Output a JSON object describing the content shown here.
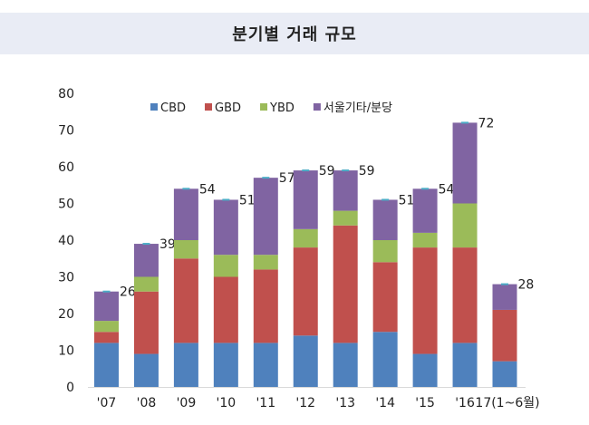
{
  "title": "분기별 거래 규모",
  "chart_data": {
    "type": "bar",
    "stacked": true,
    "title": "분기별 거래 규모",
    "categories": [
      "'07",
      "'08",
      "'09",
      "'10",
      "'11",
      "'12",
      "'13",
      "'14",
      "'15",
      "'16",
      "17(1~6월)"
    ],
    "series": [
      {
        "name": "CBD",
        "color": "#4f81bd",
        "values": [
          12,
          9,
          12,
          12,
          12,
          14,
          12,
          15,
          9,
          12,
          7
        ]
      },
      {
        "name": "GBD",
        "color": "#c0504d",
        "values": [
          3,
          17,
          23,
          18,
          20,
          24,
          32,
          19,
          29,
          26,
          14
        ]
      },
      {
        "name": "YBD",
        "color": "#9bbb59",
        "values": [
          3,
          4,
          5,
          6,
          4,
          5,
          4,
          6,
          4,
          12,
          0
        ]
      },
      {
        "name": "서울기타/분당",
        "color": "#8064a2",
        "values": [
          8,
          9,
          14,
          15,
          21,
          16,
          11,
          11,
          12,
          22,
          7
        ]
      }
    ],
    "totals": [
      26,
      39,
      54,
      51,
      57,
      59,
      59,
      51,
      54,
      72,
      28
    ],
    "ylim": [
      0,
      80
    ],
    "yticks": [
      0,
      10,
      20,
      30,
      40,
      50,
      60,
      70,
      80
    ],
    "legend_position": "top",
    "grid": false
  }
}
